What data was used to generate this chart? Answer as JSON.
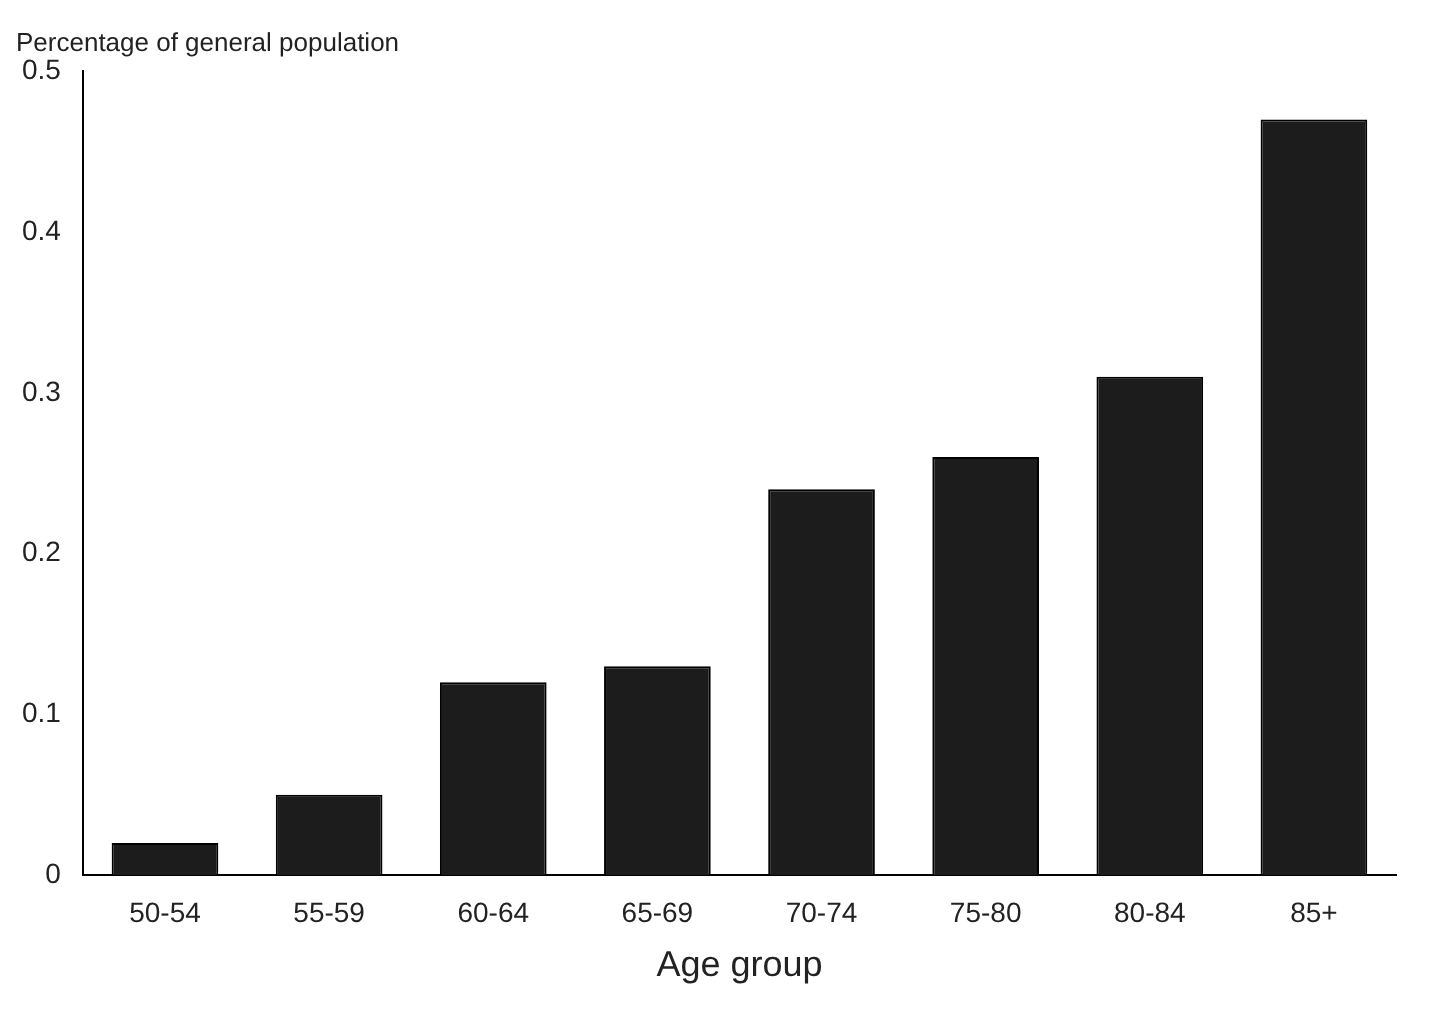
{
  "chart_data": {
    "type": "bar",
    "ylabel": "Percentage of general population",
    "xlabel": "Age group",
    "categories": [
      "50-54",
      "55-59",
      "60-64",
      "65-69",
      "70-74",
      "75-80",
      "80-84",
      "85+"
    ],
    "values": [
      0.02,
      0.05,
      0.12,
      0.13,
      0.24,
      0.26,
      0.31,
      0.47
    ],
    "color": "#1c1c1c",
    "ylim": [
      0,
      0.5
    ],
    "yticks": [
      0,
      0.1,
      0.2,
      0.3,
      0.4,
      0.5
    ],
    "grid": false,
    "legend": false
  }
}
